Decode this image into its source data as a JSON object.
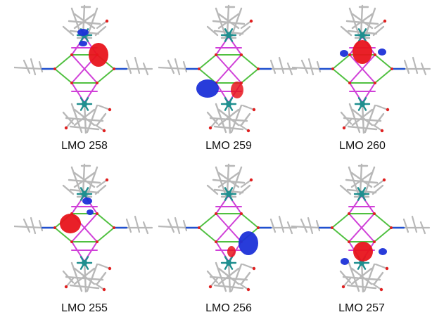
{
  "colors": {
    "positive_lobe": "#e8141c",
    "negative_lobe": "#1c32d8",
    "bond_stick": "#b8b8b8",
    "metal_atom": "#1f8f8f",
    "boron_bond": "#50c040",
    "metal_bond": "#d040d8",
    "nitrogen": "#2050d0",
    "oxygen": "#e02020"
  },
  "panels": [
    {
      "label": "LMO 258",
      "lobe_pos": "upper-right"
    },
    {
      "label": "LMO 259",
      "lobe_pos": "lower-left"
    },
    {
      "label": "LMO 260",
      "lobe_pos": "upper-center"
    },
    {
      "label": "LMO 255",
      "lobe_pos": "upper-left"
    },
    {
      "label": "LMO 256",
      "lobe_pos": "lower-right"
    },
    {
      "label": "LMO 257",
      "lobe_pos": "lower-center"
    }
  ]
}
